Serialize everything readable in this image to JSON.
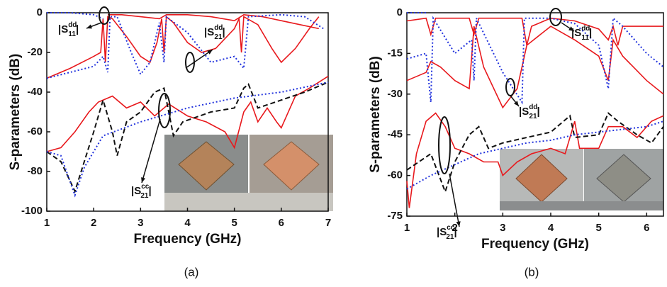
{
  "chart_data": [
    {
      "type": "line",
      "caption": "(a)",
      "x_label": "Frequency (GHz)",
      "y_label": "S-parameters (dB)",
      "xlim": [
        1,
        7
      ],
      "xticks": [
        1,
        2,
        3,
        4,
        5,
        6,
        7
      ],
      "ylim": [
        -100,
        0
      ],
      "yticks": [
        -100,
        -80,
        -60,
        -40,
        -20,
        0
      ],
      "annotations": [
        {
          "prefix": "|S",
          "sup": "dd",
          "sub": "11",
          "suffix": "|"
        },
        {
          "prefix": "|S",
          "sup": "dd",
          "sub": "21",
          "suffix": "|"
        },
        {
          "prefix": "|S",
          "sup": "cc",
          "sub": "21",
          "suffix": "|"
        }
      ],
      "series": [
        {
          "color": "#e8191d",
          "style": "solid",
          "x": [
            1,
            1.5,
            2.0,
            2.15,
            2.2,
            2.25,
            2.3,
            2.4,
            2.7,
            3.0,
            3.2,
            3.35,
            3.45,
            3.5,
            3.55,
            3.7,
            4.0,
            4.3,
            4.6,
            5.0,
            5.1,
            5.15,
            5.2,
            5.5,
            5.8,
            6.0,
            6.3,
            6.6,
            6.8
          ],
          "values": [
            -33,
            -28,
            -22,
            -20,
            -3,
            -25,
            -2,
            -3,
            -12,
            -22,
            -25,
            -15,
            -3,
            -20,
            -2,
            -5,
            -15,
            -20,
            -18,
            -8,
            -3,
            -20,
            -2,
            -6,
            -18,
            -25,
            -18,
            -8,
            -2
          ]
        },
        {
          "color": "#e8191d",
          "style": "solid",
          "x": [
            2.3,
            2.6,
            3.0,
            3.4,
            3.55,
            4.0,
            4.5,
            5.0,
            5.2,
            5.6,
            6.0,
            6.4,
            6.8
          ],
          "values": [
            -1,
            -1,
            -2,
            -3,
            -1,
            -1,
            -2,
            -4,
            -1,
            -2,
            -4,
            -6,
            -8
          ]
        },
        {
          "color": "#2233dd",
          "style": "dotted",
          "x": [
            1,
            1.5,
            2.0,
            2.2,
            2.3,
            2.35,
            2.5,
            2.8,
            3.0,
            3.2,
            3.4,
            3.5,
            3.55,
            4.0,
            4.5,
            5.0,
            5.2,
            5.3,
            6.0,
            6.5,
            6.9
          ],
          "values": [
            -33,
            -30,
            -27,
            -22,
            -30,
            -2,
            -2,
            -20,
            -31,
            -25,
            -5,
            -25,
            -2,
            -10,
            -25,
            -22,
            -28,
            -2,
            -1,
            -2,
            -8
          ]
        },
        {
          "color": "#2233dd",
          "style": "dotted",
          "x": [
            1,
            1.5,
            2.0,
            2.2
          ],
          "values": [
            0,
            0,
            -1,
            -3
          ]
        },
        {
          "color": "#e8191d",
          "style": "solid",
          "x": [
            1,
            1.3,
            1.6,
            1.9,
            2.1,
            2.4,
            2.7,
            3.0,
            3.3,
            3.6,
            4.0,
            4.4,
            4.8,
            5.0,
            5.2,
            5.35,
            5.5,
            5.7,
            5.9,
            6.0,
            6.3,
            6.6,
            7.0
          ],
          "values": [
            -70,
            -68,
            -60,
            -50,
            -45,
            -42,
            -48,
            -45,
            -52,
            -46,
            -52,
            -55,
            -60,
            -68,
            -50,
            -45,
            -55,
            -48,
            -55,
            -58,
            -42,
            -38,
            -32
          ]
        },
        {
          "color": "#111111",
          "style": "dashed",
          "x": [
            1,
            1.3,
            1.6,
            1.8,
            2.0,
            2.2,
            2.4,
            2.5,
            2.7,
            3.0,
            3.3,
            3.5,
            3.7,
            3.9,
            4.5,
            5.0,
            5.2,
            5.3,
            5.5,
            6.0,
            6.5,
            7.0
          ],
          "values": [
            -70,
            -75,
            -90,
            -75,
            -60,
            -44,
            -60,
            -72,
            -55,
            -50,
            -40,
            -38,
            -62,
            -55,
            -50,
            -48,
            -38,
            -36,
            -48,
            -44,
            -40,
            -35
          ]
        },
        {
          "color": "#2233dd",
          "style": "dotted",
          "x": [
            1,
            1.3,
            1.6,
            1.8,
            2.2,
            3.0,
            4.0,
            5.0,
            6.0,
            7.0
          ],
          "values": [
            -70,
            -72,
            -92,
            -78,
            -62,
            -55,
            -48,
            -43,
            -40,
            -35
          ]
        }
      ]
    },
    {
      "type": "line",
      "caption": "(b)",
      "x_label": "Frequency (GHz)",
      "y_label": "S-parameters (dB)",
      "xlim": [
        1,
        6.35
      ],
      "xticks": [
        1,
        2,
        3,
        4,
        5,
        6
      ],
      "ylim": [
        -75,
        0
      ],
      "yticks": [
        -75,
        -60,
        -45,
        -30,
        -15,
        0
      ],
      "annotations": [
        {
          "prefix": "|S",
          "sup": "dd",
          "sub": "11",
          "suffix": "|"
        },
        {
          "prefix": "|S",
          "sup": "dd",
          "sub": "21",
          "suffix": "|"
        },
        {
          "prefix": "|S",
          "sup": "cc",
          "sub": "21",
          "suffix": "|"
        }
      ],
      "series": [
        {
          "color": "#e8191d",
          "style": "solid",
          "x": [
            1,
            1.4,
            1.5,
            1.6,
            2.3,
            2.4,
            2.5,
            3.4,
            3.5,
            3.6,
            4.0,
            4.5,
            5.0,
            5.2,
            5.3,
            5.4,
            5.5,
            6.0,
            6.35
          ],
          "values": [
            -3,
            -2,
            -8,
            -2,
            -2,
            -8,
            -2,
            -2,
            -12,
            -5,
            -2,
            -3,
            -6,
            -10,
            -5,
            -12,
            -5,
            -5,
            -5
          ]
        },
        {
          "color": "#e8191d",
          "style": "solid",
          "x": [
            1,
            1.4,
            1.5,
            1.7,
            2.0,
            2.3,
            2.4,
            2.6,
            3.0,
            3.3,
            3.5,
            4.0,
            4.5,
            5.0,
            5.2,
            5.3,
            5.5,
            6.0,
            6.35
          ],
          "values": [
            -25,
            -22,
            -18,
            -20,
            -25,
            -28,
            -5,
            -20,
            -35,
            -28,
            -12,
            -5,
            -10,
            -16,
            -25,
            -10,
            -16,
            -25,
            -30
          ]
        },
        {
          "color": "#2233dd",
          "style": "dotted",
          "x": [
            1,
            1.4,
            1.5,
            1.55,
            2.0,
            2.35,
            2.4,
            2.45,
            3.0,
            3.4,
            3.45,
            4.0,
            4.5,
            5.0,
            5.2,
            5.3,
            5.5,
            6.0,
            6.35
          ],
          "values": [
            -17,
            -15,
            -33,
            -2,
            -15,
            -10,
            -25,
            -2,
            -22,
            -33,
            -2,
            -2,
            -4,
            -12,
            -28,
            -2,
            -5,
            -15,
            -20
          ]
        },
        {
          "color": "#2233dd",
          "style": "dotted",
          "x": [
            1,
            1.4
          ],
          "values": [
            0,
            0
          ]
        },
        {
          "color": "#e8191d",
          "style": "solid",
          "x": [
            1,
            1.05,
            1.2,
            1.4,
            1.6,
            1.8,
            2.0,
            2.3,
            2.6,
            2.9,
            3.0,
            3.3,
            3.6,
            4.0,
            4.3,
            4.5,
            4.6,
            5.0,
            5.2,
            5.5,
            5.8,
            6.1,
            6.35
          ],
          "values": [
            -62,
            -72,
            -52,
            -40,
            -37,
            -42,
            -50,
            -52,
            -55,
            -55,
            -60,
            -55,
            -52,
            -50,
            -52,
            -40,
            -50,
            -50,
            -42,
            -42,
            -46,
            -40,
            -38
          ]
        },
        {
          "color": "#111111",
          "style": "dashed",
          "x": [
            1,
            1.5,
            1.8,
            2.0,
            2.3,
            2.5,
            2.7,
            3.0,
            3.5,
            4.0,
            4.4,
            4.5,
            5.0,
            5.2,
            5.4,
            5.8,
            6.1,
            6.35
          ],
          "values": [
            -58,
            -52,
            -66,
            -55,
            -45,
            -42,
            -50,
            -48,
            -46,
            -44,
            -38,
            -46,
            -45,
            -37,
            -40,
            -45,
            -48,
            -42
          ]
        },
        {
          "color": "#2233dd",
          "style": "dotted",
          "x": [
            1,
            1.5,
            2.0,
            2.5,
            3.0,
            3.5,
            4.0,
            4.5,
            5.0,
            5.5,
            6.0,
            6.35
          ],
          "values": [
            -65,
            -60,
            -56,
            -52,
            -50,
            -48,
            -47,
            -45,
            -44,
            -43,
            -42,
            -40
          ]
        }
      ]
    }
  ]
}
